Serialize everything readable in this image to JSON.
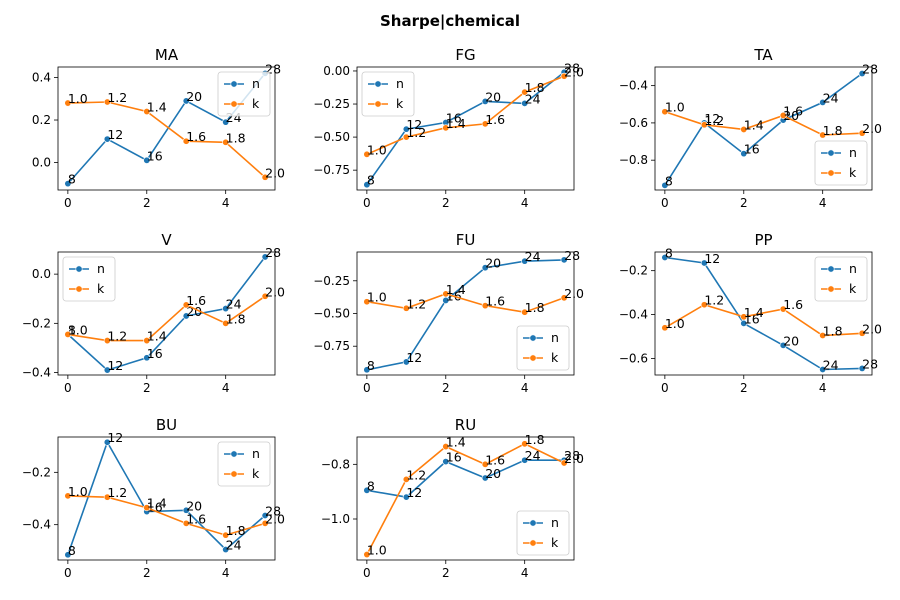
{
  "figure": {
    "title": "Sharpe|chemical"
  },
  "colors": {
    "n": "#1f77b4",
    "k": "#ff7f0e"
  },
  "chart_data": [
    {
      "type": "line",
      "title": "MA",
      "legend": "upper right",
      "x": [
        0,
        1,
        2,
        3,
        4,
        5
      ],
      "xticks": [
        0,
        2,
        4
      ],
      "ylim": [
        -0.13,
        0.45
      ],
      "yticks": [
        -0.0,
        0.2,
        0.4
      ],
      "ytick_labels": [
        "0.0",
        "0.2",
        "0.4"
      ],
      "series": [
        {
          "name": "n",
          "values": [
            -0.1,
            0.11,
            0.01,
            0.29,
            0.19,
            0.42
          ],
          "labels": [
            "8",
            "12",
            "16",
            "20",
            "24",
            "28"
          ]
        },
        {
          "name": "k",
          "values": [
            0.28,
            0.285,
            0.24,
            0.1,
            0.095,
            -0.07
          ],
          "labels": [
            "1.0",
            "1.2",
            "1.4",
            "1.6",
            "1.8",
            "2.0"
          ]
        }
      ]
    },
    {
      "type": "line",
      "title": "FG",
      "legend": "upper left",
      "x": [
        0,
        1,
        2,
        3,
        4,
        5
      ],
      "xticks": [
        0,
        2,
        4
      ],
      "ylim": [
        -0.9,
        0.03
      ],
      "yticks": [
        0.0,
        -0.25,
        -0.5,
        -0.75
      ],
      "ytick_labels": [
        "0.00",
        "−0.25",
        "−0.50",
        "−0.75"
      ],
      "series": [
        {
          "name": "n",
          "values": [
            -0.86,
            -0.44,
            -0.39,
            -0.23,
            -0.245,
            -0.01
          ],
          "labels": [
            "8",
            "12",
            "16",
            "20",
            "24",
            "28"
          ]
        },
        {
          "name": "k",
          "values": [
            -0.63,
            -0.5,
            -0.43,
            -0.4,
            -0.16,
            -0.04
          ],
          "labels": [
            "1.0",
            "1.2",
            "1.4",
            "1.6",
            "1.8",
            "2.0"
          ]
        }
      ]
    },
    {
      "type": "line",
      "title": "TA",
      "legend": "lower right",
      "x": [
        0,
        1,
        2,
        3,
        4,
        5
      ],
      "xticks": [
        0,
        2,
        4
      ],
      "ylim": [
        -0.96,
        -0.3
      ],
      "yticks": [
        -0.4,
        -0.6,
        -0.8
      ],
      "ytick_labels": [
        "−0.4",
        "−0.6",
        "−0.8"
      ],
      "series": [
        {
          "name": "n",
          "values": [
            -0.935,
            -0.6,
            -0.765,
            -0.585,
            -0.49,
            -0.335
          ],
          "labels": [
            "8",
            "12",
            "16",
            "20",
            "24",
            "28"
          ]
        },
        {
          "name": "k",
          "values": [
            -0.54,
            -0.61,
            -0.635,
            -0.56,
            -0.665,
            -0.655
          ],
          "labels": [
            "1.0",
            "1.2",
            "1.4",
            "1.6",
            "1.8",
            "2.0"
          ]
        }
      ]
    },
    {
      "type": "line",
      "title": "V",
      "legend": "upper left",
      "x": [
        0,
        1,
        2,
        3,
        4,
        5
      ],
      "xticks": [
        0,
        2,
        4
      ],
      "ylim": [
        -0.41,
        0.09
      ],
      "yticks": [
        0.0,
        -0.2,
        -0.4
      ],
      "ytick_labels": [
        "0.0",
        "−0.2",
        "−0.4"
      ],
      "series": [
        {
          "name": "n",
          "values": [
            -0.245,
            -0.39,
            -0.34,
            -0.17,
            -0.14,
            0.07
          ],
          "labels": [
            "8",
            "12",
            "16",
            "20",
            "24",
            "28"
          ]
        },
        {
          "name": "k",
          "values": [
            -0.245,
            -0.27,
            -0.27,
            -0.125,
            -0.2,
            -0.09
          ],
          "labels": [
            "1.0",
            "1.2",
            "1.4",
            "1.6",
            "1.8",
            "2.0"
          ]
        }
      ]
    },
    {
      "type": "line",
      "title": "FU",
      "legend": "lower right",
      "x": [
        0,
        1,
        2,
        3,
        4,
        5
      ],
      "xticks": [
        0,
        2,
        4
      ],
      "ylim": [
        -0.97,
        -0.03
      ],
      "yticks": [
        -0.25,
        -0.5,
        -0.75
      ],
      "ytick_labels": [
        "−0.25",
        "−0.50",
        "−0.75"
      ],
      "series": [
        {
          "name": "n",
          "values": [
            -0.93,
            -0.87,
            -0.4,
            -0.15,
            -0.1,
            -0.09
          ],
          "labels": [
            "8",
            "12",
            "16",
            "20",
            "24",
            "28"
          ]
        },
        {
          "name": "k",
          "values": [
            -0.41,
            -0.46,
            -0.35,
            -0.44,
            -0.49,
            -0.38
          ],
          "labels": [
            "1.0",
            "1.2",
            "1.4",
            "1.6",
            "1.8",
            "2.0"
          ]
        }
      ]
    },
    {
      "type": "line",
      "title": "PP",
      "legend": "upper right",
      "x": [
        0,
        1,
        2,
        3,
        4,
        5
      ],
      "xticks": [
        0,
        2,
        4
      ],
      "ylim": [
        -0.675,
        -0.115
      ],
      "yticks": [
        -0.2,
        -0.4,
        -0.6
      ],
      "ytick_labels": [
        "−0.2",
        "−0.4",
        "−0.6"
      ],
      "series": [
        {
          "name": "n",
          "values": [
            -0.14,
            -0.165,
            -0.44,
            -0.54,
            -0.65,
            -0.645
          ],
          "labels": [
            "8",
            "12",
            "16",
            "20",
            "24",
            "28"
          ]
        },
        {
          "name": "k",
          "values": [
            -0.46,
            -0.355,
            -0.41,
            -0.375,
            -0.495,
            -0.485
          ],
          "labels": [
            "1.0",
            "1.2",
            "1.4",
            "1.6",
            "1.8",
            "2.0"
          ]
        }
      ]
    },
    {
      "type": "line",
      "title": "BU",
      "legend": "upper right",
      "x": [
        0,
        1,
        2,
        3,
        4,
        5
      ],
      "xticks": [
        0,
        2,
        4
      ],
      "ylim": [
        -0.535,
        -0.065
      ],
      "yticks": [
        -0.2,
        -0.4
      ],
      "ytick_labels": [
        "−0.2",
        "−0.4"
      ],
      "series": [
        {
          "name": "n",
          "values": [
            -0.515,
            -0.085,
            -0.35,
            -0.345,
            -0.495,
            -0.365
          ],
          "labels": [
            "8",
            "12",
            "16",
            "20",
            "24",
            "28"
          ]
        },
        {
          "name": "k",
          "values": [
            -0.29,
            -0.295,
            -0.335,
            -0.395,
            -0.44,
            -0.395
          ],
          "labels": [
            "1.0",
            "1.2",
            "1.4",
            "1.6",
            "1.8",
            "2.0"
          ]
        }
      ]
    },
    {
      "type": "line",
      "title": "RU",
      "legend": "lower right",
      "x": [
        0,
        1,
        2,
        3,
        4,
        5
      ],
      "xticks": [
        0,
        2,
        4
      ],
      "ylim": [
        -1.15,
        -0.7
      ],
      "yticks": [
        -0.8,
        -1.0
      ],
      "ytick_labels": [
        "−0.8",
        "−1.0"
      ],
      "series": [
        {
          "name": "n",
          "values": [
            -0.895,
            -0.92,
            -0.79,
            -0.85,
            -0.785,
            -0.785
          ],
          "labels": [
            "8",
            "12",
            "16",
            "20",
            "24",
            "28"
          ]
        },
        {
          "name": "k",
          "values": [
            -1.13,
            -0.855,
            -0.735,
            -0.8,
            -0.725,
            -0.795
          ],
          "labels": [
            "1.0",
            "1.2",
            "1.4",
            "1.6",
            "1.8",
            "2.0"
          ]
        }
      ]
    }
  ]
}
